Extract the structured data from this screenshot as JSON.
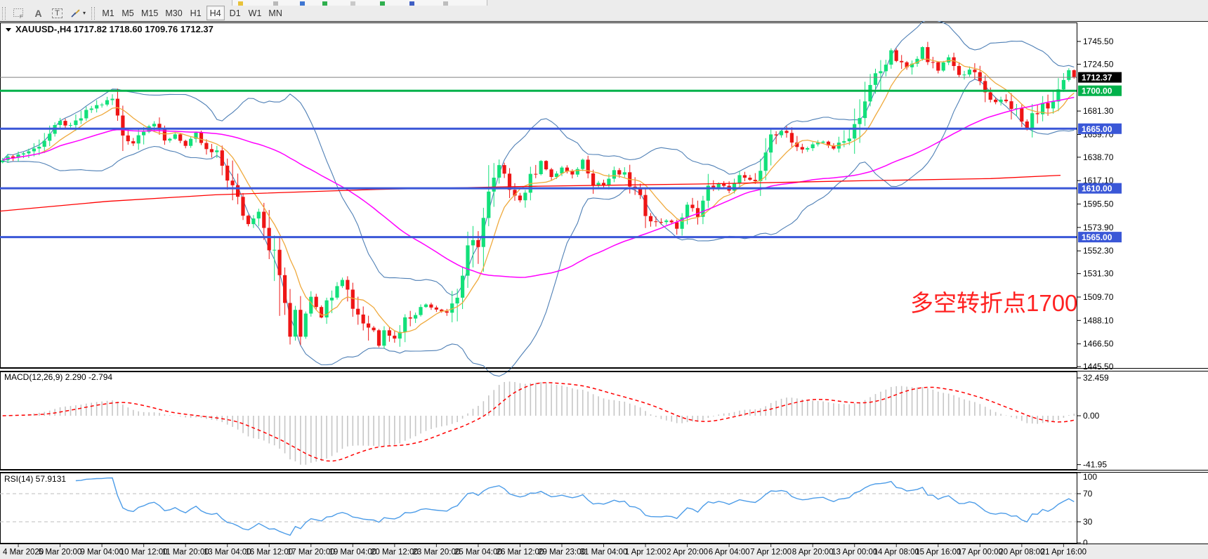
{
  "toolbar": {
    "icon_f": "F",
    "icon_a": "A",
    "icon_t": "T",
    "caret": "▾",
    "timeframes": [
      "M1",
      "M5",
      "M15",
      "M30",
      "H1",
      "H4",
      "D1",
      "W1",
      "MN"
    ],
    "active_timeframe": "H4"
  },
  "chart": {
    "title": "XAUUSD-,H4  1717.82 1718.60 1709.76 1712.37",
    "annotation": "多空转折点1700"
  },
  "colors": {
    "candle_up": "#12E07A",
    "candle_down": "#EE1515",
    "bollinger": "#4E7FB5",
    "ma_fast": "#EFA93C",
    "ma_mid": "#FF00FF",
    "ma_slow": "#FF0000",
    "hline_green": "#00B14A",
    "hline_blue": "#3A57D7",
    "price_line": "#808080",
    "price_label_bg": "#000000",
    "macd_bar": "#C6C6C6",
    "macd_signal": "#FF0000",
    "rsi_line": "#4C9CE8",
    "rsi_level": "#C9C9C9",
    "annotation": "#FF2222",
    "axis_text": "#000000",
    "panel_bg": "#FFFFFF",
    "date_bg": "#ECECEC"
  },
  "chart_data": {
    "type": "candlestick",
    "symbol": "XAUUSD-",
    "timeframe": "H4",
    "ohlc": {
      "open": "1717.82",
      "high": "1718.60",
      "low": "1709.76",
      "close": "1712.37"
    },
    "candle_count": 206,
    "close_keypoints": [
      [
        0,
        1637
      ],
      [
        3,
        1641
      ],
      [
        6,
        1646
      ],
      [
        9,
        1660
      ],
      [
        11,
        1671
      ],
      [
        13,
        1667
      ],
      [
        15,
        1675
      ],
      [
        17,
        1684
      ],
      [
        19,
        1688
      ],
      [
        21,
        1692
      ],
      [
        22,
        1675
      ],
      [
        23,
        1660
      ],
      [
        25,
        1652
      ],
      [
        27,
        1666
      ],
      [
        29,
        1670
      ],
      [
        31,
        1653
      ],
      [
        33,
        1660
      ],
      [
        35,
        1649
      ],
      [
        37,
        1660
      ],
      [
        39,
        1644
      ],
      [
        41,
        1641
      ],
      [
        43,
        1622
      ],
      [
        45,
        1597
      ],
      [
        47,
        1577
      ],
      [
        49,
        1591
      ],
      [
        51,
        1562
      ],
      [
        53,
        1528
      ],
      [
        54,
        1506
      ],
      [
        55,
        1466
      ],
      [
        56,
        1498
      ],
      [
        57,
        1478
      ],
      [
        59,
        1512
      ],
      [
        61,
        1492
      ],
      [
        63,
        1516
      ],
      [
        65,
        1528
      ],
      [
        67,
        1503
      ],
      [
        69,
        1487
      ],
      [
        71,
        1479
      ],
      [
        72,
        1466
      ],
      [
        73,
        1481
      ],
      [
        75,
        1471
      ],
      [
        77,
        1489
      ],
      [
        79,
        1496
      ],
      [
        81,
        1503
      ],
      [
        83,
        1499
      ],
      [
        85,
        1496
      ],
      [
        87,
        1512
      ],
      [
        89,
        1549
      ],
      [
        91,
        1563
      ],
      [
        93,
        1601
      ],
      [
        95,
        1630
      ],
      [
        97,
        1613
      ],
      [
        99,
        1599
      ],
      [
        101,
        1617
      ],
      [
        103,
        1636
      ],
      [
        105,
        1619
      ],
      [
        107,
        1629
      ],
      [
        109,
        1621
      ],
      [
        111,
        1636
      ],
      [
        113,
        1617
      ],
      [
        115,
        1613
      ],
      [
        117,
        1625
      ],
      [
        119,
        1621
      ],
      [
        121,
        1607
      ],
      [
        123,
        1589
      ],
      [
        125,
        1578
      ],
      [
        127,
        1581
      ],
      [
        129,
        1574
      ],
      [
        131,
        1593
      ],
      [
        133,
        1587
      ],
      [
        135,
        1609
      ],
      [
        137,
        1614
      ],
      [
        139,
        1609
      ],
      [
        141,
        1621
      ],
      [
        143,
        1617
      ],
      [
        145,
        1623
      ],
      [
        147,
        1653
      ],
      [
        149,
        1663
      ],
      [
        151,
        1656
      ],
      [
        153,
        1645
      ],
      [
        155,
        1649
      ],
      [
        157,
        1653
      ],
      [
        159,
        1647
      ],
      [
        161,
        1653
      ],
      [
        163,
        1669
      ],
      [
        165,
        1691
      ],
      [
        167,
        1713
      ],
      [
        169,
        1723
      ],
      [
        170,
        1739
      ],
      [
        171,
        1727
      ],
      [
        173,
        1721
      ],
      [
        175,
        1729
      ],
      [
        176,
        1741
      ],
      [
        177,
        1727
      ],
      [
        179,
        1719
      ],
      [
        181,
        1731
      ],
      [
        183,
        1713
      ],
      [
        185,
        1721
      ],
      [
        186,
        1714
      ],
      [
        188,
        1699
      ],
      [
        190,
        1689
      ],
      [
        191,
        1693
      ],
      [
        193,
        1687
      ],
      [
        194,
        1679
      ],
      [
        195,
        1671
      ],
      [
        196,
        1665
      ],
      [
        197,
        1677
      ],
      [
        198,
        1681
      ],
      [
        199,
        1689
      ],
      [
        200,
        1683
      ],
      [
        201,
        1693
      ],
      [
        202,
        1701
      ],
      [
        203,
        1711
      ],
      [
        204,
        1717
      ],
      [
        205,
        1712
      ]
    ],
    "red_ma_points": [
      [
        0.0,
        1589
      ],
      [
        0.1,
        1598
      ],
      [
        0.2,
        1604
      ],
      [
        0.35,
        1609
      ],
      [
        0.5,
        1612
      ],
      [
        0.65,
        1614
      ],
      [
        0.8,
        1617
      ],
      [
        0.92,
        1619
      ],
      [
        0.985,
        1622
      ]
    ],
    "price_axis": {
      "top_price": 1763.0,
      "bottom_price": 1444.9,
      "ticks": [
        "1745.50",
        "1724.50",
        "1681.30",
        "1659.70",
        "1638.70",
        "1617.10",
        "1595.50",
        "1573.90",
        "1552.30",
        "1531.30",
        "1509.70",
        "1488.10",
        "1466.50",
        "1445.50"
      ]
    },
    "hlines": [
      {
        "price": 1712.37,
        "label": "1712.37",
        "style": "price"
      },
      {
        "price": 1700.0,
        "label": "1700.00",
        "style": "green"
      },
      {
        "price": 1665.0,
        "label": "1665.00",
        "style": "blue"
      },
      {
        "price": 1610.0,
        "label": "1610.00",
        "style": "blue"
      },
      {
        "price": 1565.0,
        "label": "1565.00",
        "style": "blue"
      }
    ],
    "x_labels": [
      "4 Mar 2020",
      "5 Mar 20:00",
      "9 Mar 04:00",
      "10 Mar 12:00",
      "11 Mar 20:00",
      "13 Mar 04:00",
      "16 Mar 12:00",
      "17 Mar 20:00",
      "19 Mar 04:00",
      "20 Mar 12:00",
      "23 Mar 20:00",
      "25 Mar 04:00",
      "26 Mar 12:00",
      "29 Mar 23:00",
      "31 Mar 04:00",
      "1 Apr 12:00",
      "2 Apr 20:00",
      "6 Apr 04:00",
      "7 Apr 12:00",
      "8 Apr 20:00",
      "13 Apr 00:00",
      "14 Apr 08:00",
      "15 Apr 16:00",
      "17 Apr 00:00",
      "20 Apr 08:00",
      "21 Apr 16:00"
    ],
    "x_label_start_index": 3,
    "x_label_step": 8,
    "macd": {
      "label": "MACD(12,26,9) 2.290 -2.794",
      "axis_max": "32.459",
      "axis_zero": "0.00",
      "axis_min": "-41.95",
      "params": [
        12,
        26,
        9
      ]
    },
    "rsi": {
      "label": "RSI(14) 57.9131",
      "period": 14,
      "axis": [
        "100",
        "70",
        "30",
        "0"
      ],
      "levels": [
        70,
        30
      ]
    }
  }
}
